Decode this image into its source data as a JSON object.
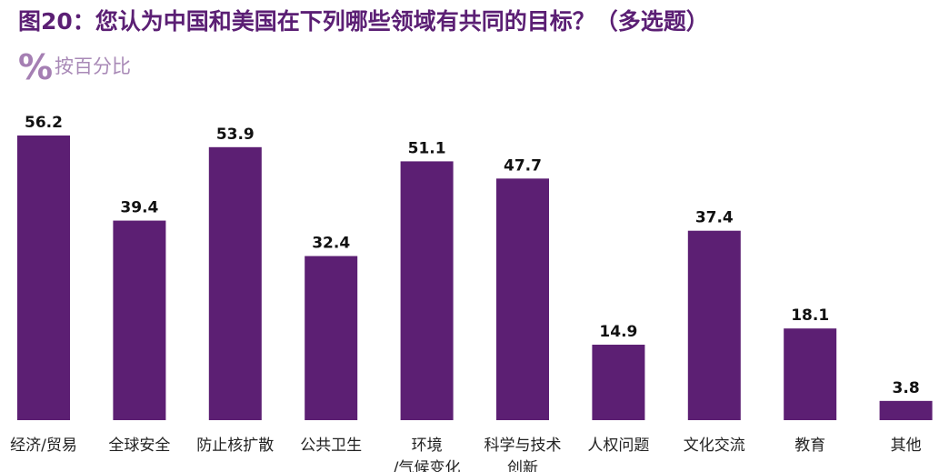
{
  "header": {
    "title": "图20：您认为中国和美国在下列哪些领域有共同的目标？（多选题）",
    "subtitle": "按百分比",
    "subtitle_icon": "percent-icon"
  },
  "colors": {
    "bar": "#5c1f73",
    "title": "#5b1f74",
    "subtitle": "#a98ab7"
  },
  "chart_data": {
    "type": "bar",
    "title": "图20：您认为中国和美国在下列哪些领域有共同的目标？（多选题）",
    "subtitle": "按百分比",
    "categories": [
      [
        "经济/贸易"
      ],
      [
        "全球安全"
      ],
      [
        "防止核扩散"
      ],
      [
        "公共卫生"
      ],
      [
        "环境",
        "/气候变化"
      ],
      [
        "科学与技术",
        "创新"
      ],
      [
        "人权问题"
      ],
      [
        "文化交流"
      ],
      [
        "教育"
      ],
      [
        "其他"
      ]
    ],
    "values": [
      56.2,
      39.4,
      53.9,
      32.4,
      51.1,
      47.7,
      14.9,
      37.4,
      18.1,
      3.8
    ],
    "ylim": [
      0,
      56.2
    ],
    "grid": false,
    "legend": "none",
    "data_labels": true
  }
}
